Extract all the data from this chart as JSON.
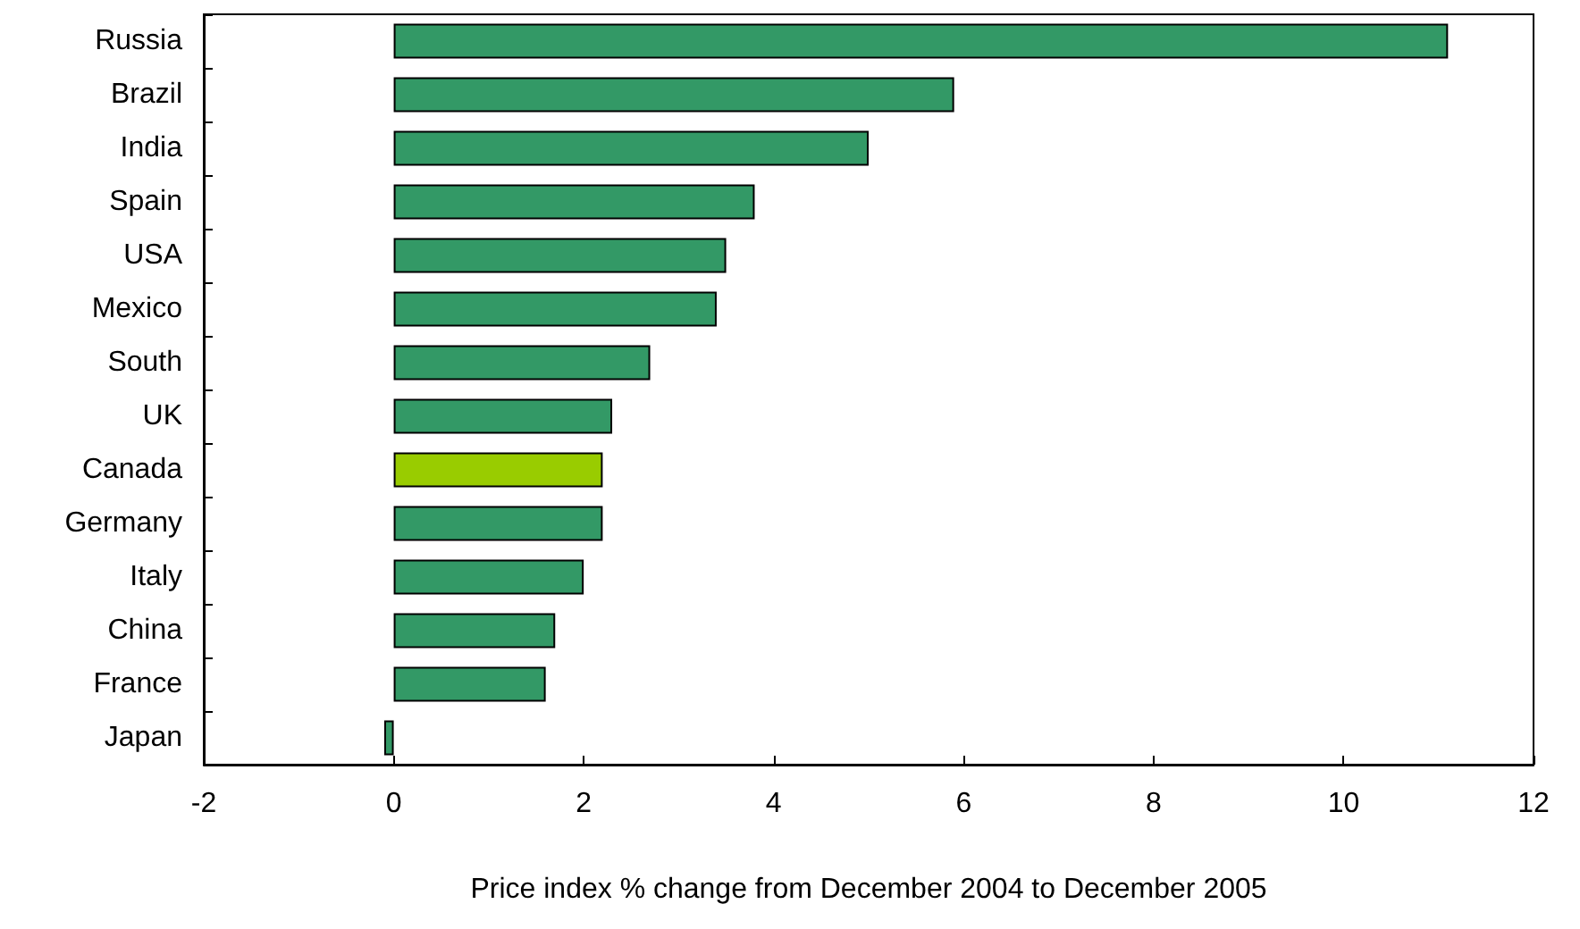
{
  "chart_data": {
    "type": "bar",
    "orientation": "horizontal",
    "xlabel": "Price index % change from December 2004 to December 2005",
    "categories": [
      "Russia",
      "Brazil",
      "India",
      "Spain",
      "USA",
      "Mexico",
      "South",
      "UK",
      "Canada",
      "Germany",
      "Italy",
      "China",
      "France",
      "Japan"
    ],
    "values": [
      11.1,
      5.9,
      5.0,
      3.8,
      3.5,
      3.4,
      2.7,
      2.3,
      2.2,
      2.2,
      2.0,
      1.7,
      1.6,
      -0.1
    ],
    "colors": [
      "#339966",
      "#339966",
      "#339966",
      "#339966",
      "#339966",
      "#339966",
      "#339966",
      "#339966",
      "#99cc00",
      "#339966",
      "#339966",
      "#339966",
      "#339966",
      "#339966"
    ],
    "xlim": [
      -2,
      12
    ],
    "xticks": [
      -2,
      0,
      2,
      4,
      6,
      8,
      10,
      12
    ],
    "grid": false
  }
}
